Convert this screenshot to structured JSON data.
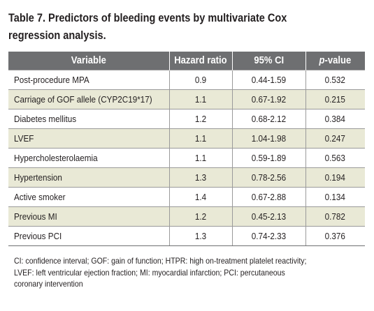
{
  "caption": {
    "line1": "Table 7. Predictors of bleeding events by multivariate Cox",
    "line2": "regression analysis."
  },
  "table": {
    "headers": {
      "variable": "Variable",
      "hazard_ratio": "Hazard ratio",
      "ci": "95% CI",
      "p_prefix": "p",
      "p_suffix": "-value"
    },
    "rows": [
      {
        "variable": "Post-procedure MPA",
        "hr": "0.9",
        "ci": "0.44-1.59",
        "p": "0.532"
      },
      {
        "variable": "Carriage of GOF allele (CYP2C19*17)",
        "hr": "1.1",
        "ci": "0.67-1.92",
        "p": "0.215"
      },
      {
        "variable": "Diabetes mellitus",
        "hr": "1.2",
        "ci": "0.68-2.12",
        "p": "0.384"
      },
      {
        "variable": "LVEF",
        "hr": "1.1",
        "ci": "1.04-1.98",
        "p": "0.247"
      },
      {
        "variable": "Hypercholesterolaemia",
        "hr": "1.1",
        "ci": "0.59-1.89",
        "p": "0.563"
      },
      {
        "variable": "Hypertension",
        "hr": "1.3",
        "ci": "0.78-2.56",
        "p": "0.194"
      },
      {
        "variable": "Active smoker",
        "hr": "1.4",
        "ci": "0.67-2.88",
        "p": "0.134"
      },
      {
        "variable": "Previous MI",
        "hr": "1.2",
        "ci": "0.45-2.13",
        "p": "0.782"
      },
      {
        "variable": "Previous PCI",
        "hr": "1.3",
        "ci": "0.74-2.33",
        "p": "0.376"
      }
    ]
  },
  "footnote": {
    "line1": "CI: confidence interval; GOF: gain of function; HTPR: high on-treatment platelet reactivity;",
    "line2": "LVEF: left ventricular ejection fraction; MI: myocardial infarction; PCI: percutaneous",
    "line3": "coronary intervention"
  },
  "colors": {
    "header_bg": "#6e6f71",
    "stripe_bg": "#e9e9d6",
    "text": "#231f20"
  }
}
